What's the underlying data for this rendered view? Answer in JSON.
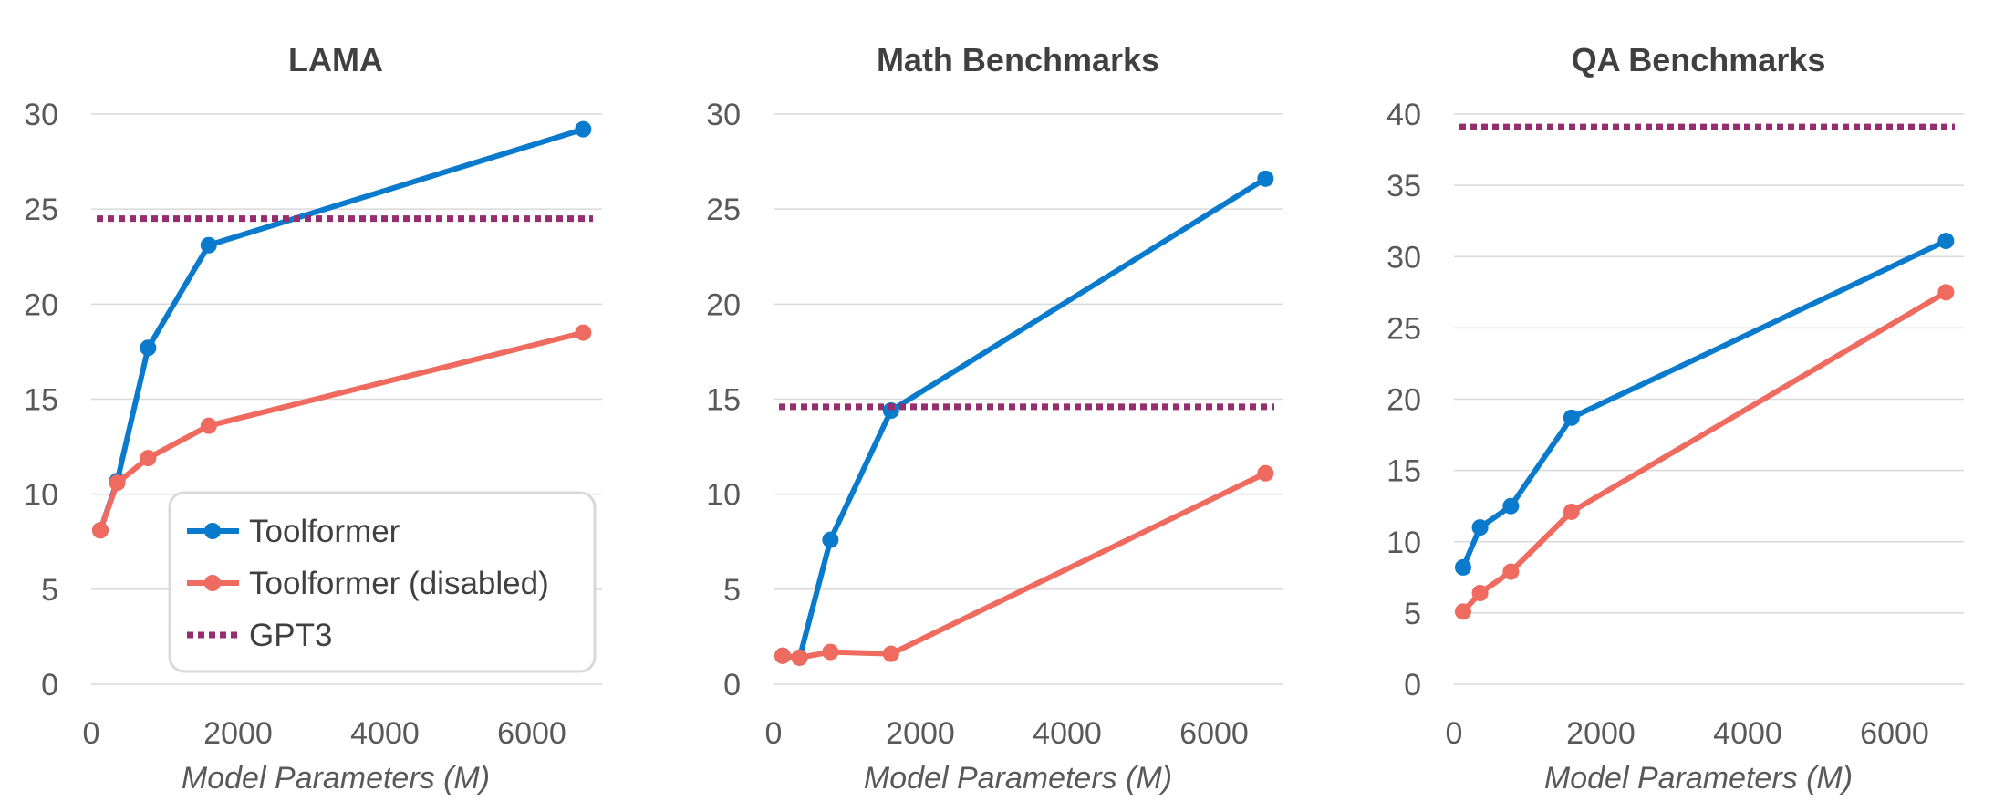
{
  "colors": {
    "toolformer": "#0a7bcc",
    "toolformer_disabled": "#ef6a5f",
    "gpt3": "#962d6e",
    "grid": "#d9d9d9",
    "text": "#595959"
  },
  "legend": {
    "placement": "inside-lower-right of first panel",
    "items": [
      {
        "label": "Toolformer",
        "series": "toolformer"
      },
      {
        "label": "Toolformer (disabled)",
        "series": "toolformer_disabled"
      },
      {
        "label": "GPT3",
        "series": "gpt3"
      }
    ]
  },
  "chart_data": [
    {
      "type": "line",
      "title": "LAMA",
      "xlabel": "Model Parameters (M)",
      "ylabel": "",
      "xlim": [
        0,
        7000
      ],
      "ylim": [
        0,
        30
      ],
      "xticks": [
        "0",
        "2000",
        "4000",
        "6000"
      ],
      "yticks": [
        "0",
        "5",
        "10",
        "15",
        "20",
        "25",
        "30"
      ],
      "grid": "horizontal",
      "x": [
        124,
        355,
        775,
        1600,
        6700
      ],
      "series": [
        {
          "name": "Toolformer",
          "values": [
            8.1,
            10.7,
            17.7,
            23.1,
            29.2
          ]
        },
        {
          "name": "Toolformer (disabled)",
          "values": [
            8.1,
            10.6,
            11.9,
            13.6,
            18.5
          ]
        },
        {
          "name": "GPT3",
          "constant": 24.5
        }
      ]
    },
    {
      "type": "line",
      "title": "Math Benchmarks",
      "xlabel": "Model Parameters (M)",
      "ylabel": "",
      "xlim": [
        0,
        7000
      ],
      "ylim": [
        0,
        30
      ],
      "xticks": [
        "0",
        "2000",
        "4000",
        "6000"
      ],
      "yticks": [
        "0",
        "5",
        "10",
        "15",
        "20",
        "25",
        "30"
      ],
      "grid": "horizontal",
      "x": [
        124,
        355,
        775,
        1600,
        6700
      ],
      "series": [
        {
          "name": "Toolformer",
          "values": [
            1.5,
            1.4,
            7.6,
            14.4,
            26.6
          ]
        },
        {
          "name": "Toolformer (disabled)",
          "values": [
            1.5,
            1.4,
            1.7,
            1.6,
            11.1
          ]
        },
        {
          "name": "GPT3",
          "constant": 14.6
        }
      ]
    },
    {
      "type": "line",
      "title": "QA Benchmarks",
      "xlabel": "Model Parameters (M)",
      "ylabel": "",
      "xlim": [
        0,
        7000
      ],
      "ylim": [
        0,
        40
      ],
      "xticks": [
        "0",
        "2000",
        "4000",
        "6000"
      ],
      "yticks": [
        "0",
        "5",
        "10",
        "15",
        "20",
        "25",
        "30",
        "35",
        "40"
      ],
      "grid": "horizontal",
      "x": [
        124,
        355,
        775,
        1600,
        6700
      ],
      "series": [
        {
          "name": "Toolformer",
          "values": [
            8.2,
            11.0,
            12.5,
            18.7,
            31.1
          ]
        },
        {
          "name": "Toolformer (disabled)",
          "values": [
            5.1,
            6.4,
            7.9,
            12.1,
            27.5
          ]
        },
        {
          "name": "GPT3",
          "constant": 39.1
        }
      ]
    }
  ]
}
